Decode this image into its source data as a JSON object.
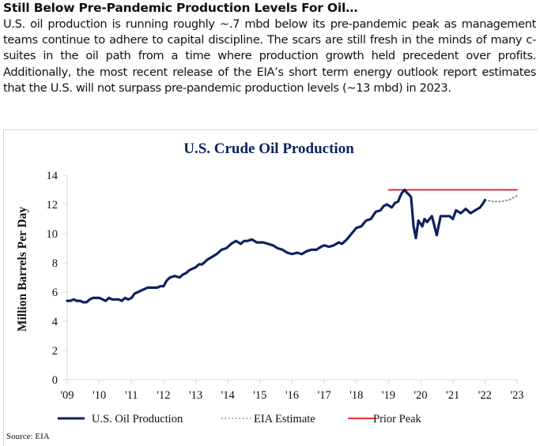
{
  "article": {
    "heading": "Still Below Pre-Pandemic Production Levels For Oil…",
    "body": "U.S. oil production is running roughly ~.7 mbd below its pre-pandemic peak as management teams continue to adhere to capital discipline. The scars are still fresh in the minds of many c-suites in the oil path from a time where production growth held precedent over profits. Additionally, the most recent release of the EIA’s short term energy outlook report estimates that the U.S. will not surpass pre-pandemic production levels (~13 mbd) in 2023."
  },
  "source": "Source: EIA",
  "colors": {
    "production": "#0d2260",
    "estimate": "#8c8c8c",
    "peak": "#e8141b",
    "title": "#0d2260",
    "axis": "#d9d9d9"
  },
  "chart_data": {
    "type": "line",
    "title": "U.S. Crude Oil Production",
    "xlabel": "",
    "ylabel": "Million Barrels Per Day",
    "xlim": [
      2009,
      2023
    ],
    "ylim": [
      0,
      14
    ],
    "yticks": [
      0,
      2,
      4,
      6,
      8,
      10,
      12,
      14
    ],
    "xticks": [
      2009,
      2010,
      2011,
      2012,
      2013,
      2014,
      2015,
      2016,
      2017,
      2018,
      2019,
      2020,
      2021,
      2022,
      2023
    ],
    "xtick_labels": [
      "'09",
      "'10",
      "'11",
      "'12",
      "'13",
      "'14",
      "'15",
      "'16",
      "'17",
      "'18",
      "'19",
      "'20",
      "'21",
      "'22",
      "'23"
    ],
    "grid": false,
    "legend": "bottom",
    "series": [
      {
        "name": "U.S. Oil Production",
        "style": "solid",
        "x": [
          2009.0,
          2009.1,
          2009.2,
          2009.3,
          2009.4,
          2009.5,
          2009.6,
          2009.7,
          2009.8,
          2009.9,
          2010.0,
          2010.1,
          2010.2,
          2010.3,
          2010.4,
          2010.5,
          2010.6,
          2010.7,
          2010.8,
          2010.9,
          2011.0,
          2011.1,
          2011.2,
          2011.3,
          2011.5,
          2011.6,
          2011.8,
          2011.9,
          2012.0,
          2012.1,
          2012.2,
          2012.35,
          2012.5,
          2012.6,
          2012.7,
          2012.8,
          2012.9,
          2013.0,
          2013.1,
          2013.2,
          2013.35,
          2013.5,
          2013.65,
          2013.8,
          2013.95,
          2014.1,
          2014.25,
          2014.4,
          2014.5,
          2014.6,
          2014.75,
          2014.9,
          2015.0,
          2015.1,
          2015.25,
          2015.4,
          2015.55,
          2015.7,
          2015.85,
          2016.0,
          2016.15,
          2016.3,
          2016.45,
          2016.6,
          2016.75,
          2016.9,
          2017.0,
          2017.15,
          2017.3,
          2017.45,
          2017.55,
          2017.7,
          2017.85,
          2018.0,
          2018.15,
          2018.3,
          2018.45,
          2018.6,
          2018.75,
          2018.85,
          2018.95,
          2019.1,
          2019.2,
          2019.3,
          2019.35,
          2019.42,
          2019.5,
          2019.57,
          2019.63,
          2019.7,
          2019.78,
          2019.85,
          2019.93,
          2020.05,
          2020.12,
          2020.2,
          2020.35,
          2020.5,
          2020.62,
          2020.75,
          2020.9,
          2021.0,
          2021.1,
          2021.25,
          2021.4,
          2021.55,
          2021.7,
          2021.85,
          2021.95,
          2022.0
        ],
        "values": [
          5.4,
          5.4,
          5.5,
          5.4,
          5.4,
          5.3,
          5.3,
          5.5,
          5.6,
          5.6,
          5.6,
          5.5,
          5.4,
          5.6,
          5.5,
          5.5,
          5.5,
          5.4,
          5.6,
          5.5,
          5.6,
          5.9,
          6.0,
          6.1,
          6.3,
          6.3,
          6.3,
          6.4,
          6.4,
          6.8,
          7.0,
          7.1,
          7.0,
          7.2,
          7.3,
          7.5,
          7.6,
          7.7,
          7.9,
          7.9,
          8.2,
          8.4,
          8.6,
          8.9,
          9.0,
          9.3,
          9.5,
          9.3,
          9.5,
          9.5,
          9.6,
          9.4,
          9.4,
          9.4,
          9.3,
          9.2,
          9.0,
          8.9,
          8.7,
          8.6,
          8.7,
          8.6,
          8.8,
          8.9,
          8.9,
          9.1,
          9.2,
          9.1,
          9.2,
          9.4,
          9.3,
          9.6,
          10.0,
          10.4,
          10.5,
          10.9,
          11.0,
          11.5,
          11.6,
          11.9,
          12.0,
          11.8,
          12.1,
          12.2,
          12.5,
          12.8,
          13.0,
          12.8,
          12.7,
          12.5,
          10.5,
          9.7,
          10.9,
          10.5,
          11.0,
          10.8,
          11.2,
          9.9,
          11.2,
          11.2,
          11.2,
          11.0,
          11.6,
          11.4,
          11.7,
          11.4,
          11.6,
          11.8,
          12.1,
          12.3
        ]
      },
      {
        "name": "EIA Estimate",
        "style": "dotted",
        "x": [
          2022.0,
          2022.25,
          2022.5,
          2022.75,
          2023.0
        ],
        "values": [
          12.3,
          12.2,
          12.2,
          12.3,
          12.6
        ]
      },
      {
        "name": "Prior Peak",
        "style": "solid",
        "x": [
          2019.0,
          2023.0
        ],
        "values": [
          13.0,
          13.0
        ]
      }
    ]
  }
}
